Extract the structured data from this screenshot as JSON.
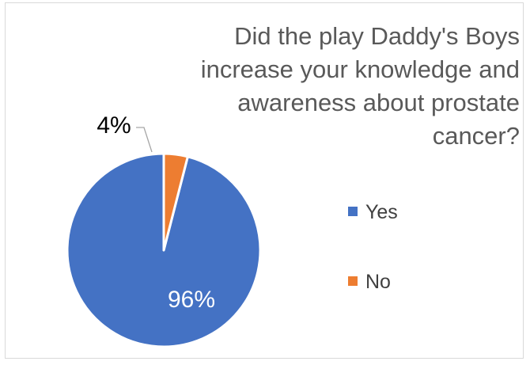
{
  "chart_data": {
    "type": "pie",
    "title": "Did the play Daddy's Boys increase your knowledge and awareness about prostate cancer?",
    "title_lines": [
      "Did the play Daddy's Boys",
      "increase your knowledge and",
      "awareness about prostate",
      "cancer?"
    ],
    "categories": [
      "Yes",
      "No"
    ],
    "values": [
      96,
      4
    ],
    "data_labels": [
      "96%",
      "4%"
    ],
    "colors": [
      "#4472c4",
      "#ed7d31"
    ],
    "legend": {
      "position": "right",
      "entries": [
        "Yes",
        "No"
      ]
    }
  }
}
